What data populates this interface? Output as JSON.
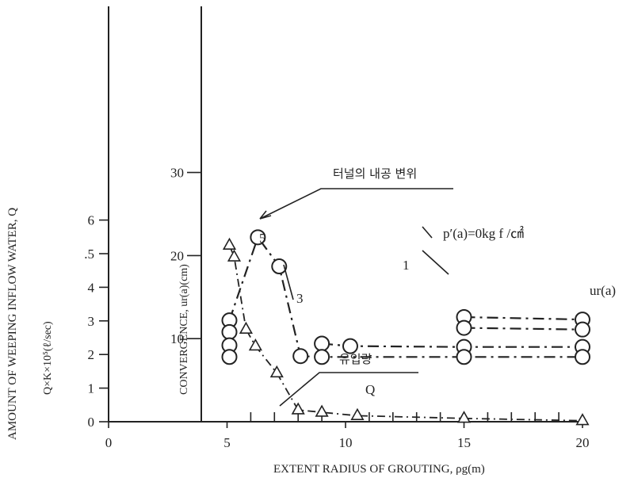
{
  "chart_data": {
    "type": "line",
    "xlabel": "EXTENT RADIUS OF GROUTING, ρg(m)",
    "ylabel_outer": "AMOUNT OF WEEPING INFLOW WATER, Q",
    "ylabel_outer_unit": "Q×K×10⁵(ℓ/sec)",
    "ylabel_inner": "CONVERGENCE, ur(a)(cm)",
    "xlim": [
      0,
      20
    ],
    "x_ticks": [
      "0",
      "5",
      "10",
      "15",
      "20"
    ],
    "outer_y_ticks": [
      "0",
      "1",
      "2",
      "3",
      "4",
      ".5",
      "6"
    ],
    "inner_y_ticks": [
      "10",
      "20",
      "30"
    ],
    "annotations": {
      "convergence_label": "터널의 내공 변위",
      "inflow_label": "유입량",
      "q_label": "Q",
      "pressure_label": "p′(a)=0kg f /㎠",
      "ur_label": "ur(a)",
      "curve_1": "1",
      "curve_3": "3",
      "curve_5": "5"
    },
    "series": [
      {
        "name": "1",
        "kind": "convergence",
        "x": [
          15,
          20
        ],
        "y": [
          12.6,
          12.3
        ]
      },
      {
        "name": "",
        "kind": "convergence",
        "x": [
          15,
          20
        ],
        "y": [
          11.3,
          11.1
        ]
      },
      {
        "name": "3",
        "kind": "convergence",
        "x": [
          9,
          10.2,
          15,
          20
        ],
        "y": [
          9.4,
          9.1,
          9.0,
          9.0
        ]
      },
      {
        "name": "5",
        "kind": "convergence",
        "x": [
          5.1,
          6.3,
          7.2,
          8.1,
          9,
          15,
          20
        ],
        "y": [
          12.2,
          22.2,
          18.7,
          7.9,
          7.8,
          7.8,
          7.8
        ]
      },
      {
        "name": "",
        "kind": "convergence",
        "x": [
          5.1,
          5.1,
          5.1
        ],
        "y": [
          10.8,
          9.2,
          7.8
        ]
      },
      {
        "name": "Q",
        "kind": "inflow",
        "x": [
          5.1,
          5.3,
          5.8,
          6.2,
          7.1,
          8.0,
          9.0,
          10.5,
          15,
          20
        ],
        "y": [
          5.25,
          4.9,
          2.75,
          2.25,
          1.45,
          0.35,
          0.28,
          0.18,
          0.1,
          0.03
        ]
      }
    ]
  }
}
